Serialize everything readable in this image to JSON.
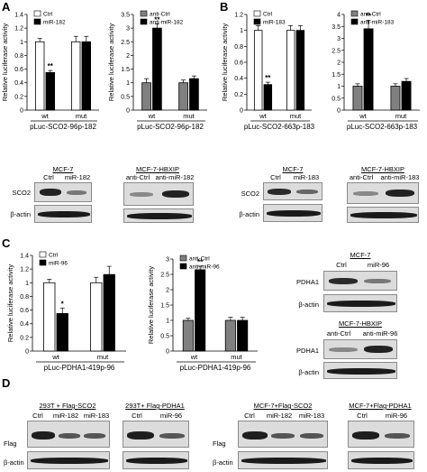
{
  "panels": {
    "A": "A",
    "B": "B",
    "C": "C",
    "D": "D"
  },
  "charts": [
    {
      "id": "chartA1",
      "construct": "pLuc-SCO2-96p-182",
      "ylabel": "Relative luciferase activity",
      "ylim": [
        0,
        1.4
      ],
      "ticks": [
        0,
        0.2,
        0.4,
        0.6,
        0.8,
        1.0,
        1.2,
        1.4
      ],
      "groups": [
        "wt",
        "mut"
      ],
      "series": [
        {
          "name": "Ctrl",
          "values": [
            1.0,
            1.0
          ],
          "err": [
            0.05,
            0.08
          ],
          "color": "#ffffff"
        },
        {
          "name": "miR-182",
          "values": [
            0.55,
            1.0
          ],
          "err": [
            0.03,
            0.08
          ],
          "color": "#000000"
        }
      ],
      "sig": [
        "**",
        ""
      ]
    },
    {
      "id": "chartA2",
      "construct": "pLuc-SCO2-96p-182",
      "ylabel": "Relative luciferase activity",
      "ylim": [
        0,
        3.5
      ],
      "ticks": [
        0,
        0.5,
        1.0,
        1.5,
        2.0,
        2.5,
        3.0,
        3.5
      ],
      "groups": [
        "wt",
        "mut"
      ],
      "series": [
        {
          "name": "anti-Ctrl",
          "values": [
            1.0,
            1.0
          ],
          "err": [
            0.15,
            0.1
          ],
          "color": "#808080"
        },
        {
          "name": "anti-miR-182",
          "values": [
            3.0,
            1.15
          ],
          "err": [
            0.15,
            0.1
          ],
          "color": "#000000"
        }
      ],
      "sig": [
        "**",
        ""
      ]
    },
    {
      "id": "chartB1",
      "construct": "pLuc-SCO2-663p-183",
      "ylabel": "Relative luciferase activity",
      "ylim": [
        0,
        1.2
      ],
      "ticks": [
        0,
        0.2,
        0.4,
        0.6,
        0.8,
        1.0,
        1.2
      ],
      "groups": [
        "wt",
        "mut"
      ],
      "series": [
        {
          "name": "Ctrl",
          "values": [
            1.0,
            1.0
          ],
          "err": [
            0.06,
            0.06
          ],
          "color": "#ffffff"
        },
        {
          "name": "miR-183",
          "values": [
            0.32,
            1.0
          ],
          "err": [
            0.03,
            0.06
          ],
          "color": "#000000"
        }
      ],
      "sig": [
        "**",
        ""
      ]
    },
    {
      "id": "chartB2",
      "construct": "pLuc-SCO2-663p-183",
      "ylabel": "",
      "ylim": [
        0,
        4
      ],
      "ticks": [
        0,
        0.5,
        1,
        1.5,
        2,
        2.5,
        3,
        3.5,
        4
      ],
      "groups": [
        "wt",
        "mut"
      ],
      "series": [
        {
          "name": "anti-Ctrl",
          "values": [
            1.0,
            1.0
          ],
          "err": [
            0.1,
            0.1
          ],
          "color": "#808080"
        },
        {
          "name": "anti-miR-183",
          "values": [
            3.4,
            1.2
          ],
          "err": [
            0.35,
            0.12
          ],
          "color": "#000000"
        }
      ],
      "sig": [
        "**",
        ""
      ]
    },
    {
      "id": "chartC1",
      "construct": "pLuc-PDHA1-419p-96",
      "ylabel": "Relative luciferase activity",
      "ylim": [
        0,
        1.4
      ],
      "ticks": [
        0,
        0.2,
        0.4,
        0.6,
        0.8,
        1.0,
        1.2,
        1.4
      ],
      "groups": [
        "wt",
        "mut"
      ],
      "series": [
        {
          "name": "Ctrl",
          "values": [
            1.0,
            1.0
          ],
          "err": [
            0.05,
            0.08
          ],
          "color": "#ffffff"
        },
        {
          "name": "miR-96",
          "values": [
            0.55,
            1.12
          ],
          "err": [
            0.08,
            0.12
          ],
          "color": "#000000"
        }
      ],
      "sig": [
        "*",
        ""
      ]
    },
    {
      "id": "chartC2",
      "construct": "pLuc-PDHA1-419p-96",
      "ylabel": "Relative luciferase activity",
      "ylim": [
        0,
        3
      ],
      "ticks": [
        0,
        0.5,
        1.0,
        1.5,
        2.0,
        2.5,
        3.0
      ],
      "groups": [
        "wt",
        "mut"
      ],
      "series": [
        {
          "name": "anti-Ctrl",
          "values": [
            1.0,
            1.0
          ],
          "err": [
            0.07,
            0.1
          ],
          "color": "#808080"
        },
        {
          "name": "anti-miR-96",
          "values": [
            2.65,
            1.0
          ],
          "err": [
            0.12,
            0.1
          ],
          "color": "#000000"
        }
      ],
      "sig": [
        "**",
        ""
      ]
    }
  ],
  "chart_data": [
    {
      "type": "bar",
      "title": "",
      "xlabel": "pLuc-SCO2-96p-182",
      "ylabel": "Relative luciferase activity",
      "categories": [
        "wt",
        "mut"
      ],
      "ylim": [
        0,
        1.4
      ],
      "series": [
        {
          "name": "Ctrl",
          "values": [
            1.0,
            1.0
          ]
        },
        {
          "name": "miR-182",
          "values": [
            0.55,
            1.0
          ]
        }
      ]
    },
    {
      "type": "bar",
      "title": "",
      "xlabel": "pLuc-SCO2-96p-182",
      "ylabel": "Relative luciferase activity",
      "categories": [
        "wt",
        "mut"
      ],
      "ylim": [
        0,
        3.5
      ],
      "series": [
        {
          "name": "anti-Ctrl",
          "values": [
            1.0,
            1.0
          ]
        },
        {
          "name": "anti-miR-182",
          "values": [
            3.0,
            1.15
          ]
        }
      ]
    },
    {
      "type": "bar",
      "title": "",
      "xlabel": "pLuc-SCO2-663p-183",
      "ylabel": "Relative luciferase activity",
      "categories": [
        "wt",
        "mut"
      ],
      "ylim": [
        0,
        1.2
      ],
      "series": [
        {
          "name": "Ctrl",
          "values": [
            1.0,
            1.0
          ]
        },
        {
          "name": "miR-183",
          "values": [
            0.32,
            1.0
          ]
        }
      ]
    },
    {
      "type": "bar",
      "title": "",
      "xlabel": "pLuc-SCO2-663p-183",
      "ylabel": "",
      "categories": [
        "wt",
        "mut"
      ],
      "ylim": [
        0,
        4
      ],
      "series": [
        {
          "name": "anti-Ctrl",
          "values": [
            1.0,
            1.0
          ]
        },
        {
          "name": "anti-miR-183",
          "values": [
            3.4,
            1.2
          ]
        }
      ]
    },
    {
      "type": "bar",
      "title": "",
      "xlabel": "pLuc-PDHA1-419p-96",
      "ylabel": "Relative luciferase activity",
      "categories": [
        "wt",
        "mut"
      ],
      "ylim": [
        0,
        1.4
      ],
      "series": [
        {
          "name": "Ctrl",
          "values": [
            1.0,
            1.0
          ]
        },
        {
          "name": "miR-96",
          "values": [
            0.55,
            1.12
          ]
        }
      ]
    },
    {
      "type": "bar",
      "title": "",
      "xlabel": "pLuc-PDHA1-419p-96",
      "ylabel": "Relative luciferase activity",
      "categories": [
        "wt",
        "mut"
      ],
      "ylim": [
        0,
        3
      ],
      "series": [
        {
          "name": "anti-Ctrl",
          "values": [
            1.0,
            1.0
          ]
        },
        {
          "name": "anti-miR-96",
          "values": [
            2.65,
            1.0
          ]
        }
      ]
    }
  ],
  "blots": {
    "a_mcf7": "MCF-7",
    "a_hbxip": "MCF-7-HBXIP",
    "a_lanes1": [
      "Ctrl",
      "miR-182"
    ],
    "a_lanes2": [
      "anti-Ctrl",
      "anti-miR-182"
    ],
    "b_mcf7": "MCF-7",
    "b_hbxip": "MCF-7-HBXIP",
    "b_lanes1": [
      "Ctrl",
      "miR-183"
    ],
    "b_lanes2": [
      "anti-Ctrl",
      "anti-miR-183"
    ],
    "c_mcf7": "MCF-7",
    "c_hbxip": "MCF-7-HBXIP",
    "c_lanes1": [
      "Ctrl",
      "miR-96"
    ],
    "c_lanes2": [
      "anti-Ctrl",
      "anti-miR-96"
    ],
    "d_h1": "293T + Flag-SCO2",
    "d_h2": "293T+ Flag-PDHA1",
    "d_h3": "MCF-7+Flag-SCO2",
    "d_h4": "MCF-7+Flag-PDHA1",
    "d_lanes1": [
      "Ctrl",
      "miR-182",
      "miR-183"
    ],
    "d_lanes2": [
      "Ctrl",
      "miR-96"
    ],
    "sco2": "SCO2",
    "pdha1": "PDHA1",
    "flag": "Flag",
    "actin": "β-actin"
  }
}
